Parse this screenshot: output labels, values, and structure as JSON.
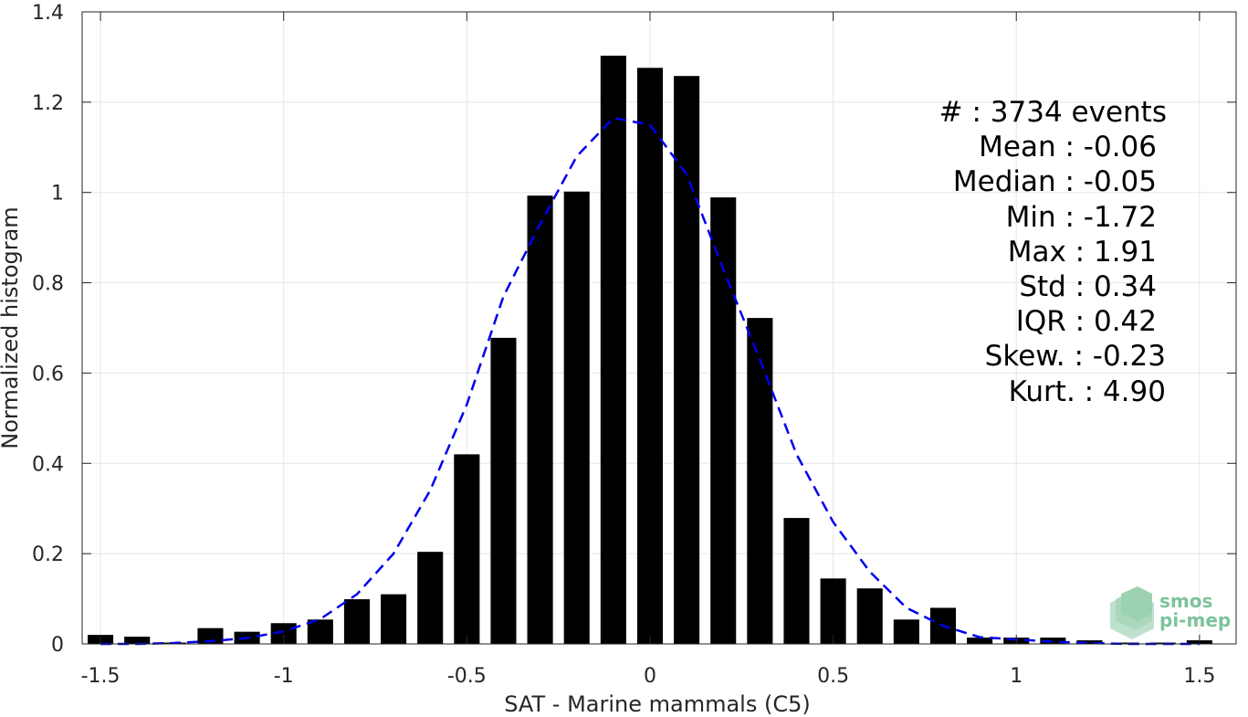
{
  "chart_data": {
    "type": "bar",
    "xlabel": "SAT - Marine mammals (C5)",
    "ylabel": "Normalized histogram",
    "xlim": [
      -1.55,
      1.6
    ],
    "ylim": [
      0,
      1.4
    ],
    "xticks": [
      "-1.5",
      "-1",
      "-0.5",
      "0",
      "0.5",
      "1",
      "1.5"
    ],
    "yticks": [
      "0",
      "0.2",
      "0.4",
      "0.6",
      "0.8",
      "1",
      "1.2",
      "1.4"
    ],
    "grid": true,
    "bin_width": 0.1,
    "bins": {
      "x": [
        -1.5,
        -1.4,
        -1.3,
        -1.2,
        -1.1,
        -1.0,
        -0.9,
        -0.8,
        -0.7,
        -0.6,
        -0.5,
        -0.4,
        -0.3,
        -0.2,
        -0.1,
        0.0,
        0.1,
        0.2,
        0.3,
        0.4,
        0.5,
        0.6,
        0.7,
        0.8,
        0.9,
        1.0,
        1.1,
        1.2,
        1.3,
        1.4,
        1.5
      ],
      "values": [
        0.02,
        0.016,
        0.003,
        0.035,
        0.027,
        0.046,
        0.054,
        0.099,
        0.11,
        0.204,
        0.42,
        0.678,
        0.993,
        1.002,
        1.303,
        1.276,
        1.258,
        0.989,
        0.722,
        0.279,
        0.145,
        0.123,
        0.054,
        0.08,
        0.014,
        0.014,
        0.014,
        0.008,
        0.003,
        0.003,
        0.008
      ],
      "color": "#000000"
    },
    "fit_curve": {
      "style": "dashed",
      "color": "#0000ee",
      "x": [
        -1.5,
        -1.4,
        -1.3,
        -1.2,
        -1.1,
        -1.0,
        -0.9,
        -0.8,
        -0.7,
        -0.6,
        -0.5,
        -0.4,
        -0.3,
        -0.2,
        -0.1,
        0.0,
        0.1,
        0.2,
        0.3,
        0.4,
        0.5,
        0.6,
        0.7,
        0.8,
        0.9,
        1.0,
        1.1,
        1.2,
        1.3,
        1.4,
        1.5
      ],
      "y": [
        0.0,
        0.0,
        0.002,
        0.006,
        0.013,
        0.028,
        0.055,
        0.11,
        0.2,
        0.34,
        0.53,
        0.77,
        0.93,
        1.08,
        1.165,
        1.15,
        1.04,
        0.83,
        0.63,
        0.42,
        0.27,
        0.16,
        0.08,
        0.04,
        0.015,
        0.01,
        0.005,
        0.002,
        0.0,
        0.0,
        0.0
      ]
    }
  },
  "stats": [
    "#  : 3734 events",
    "Mean : -0.06",
    "Median : -0.05",
    "Min : -1.72",
    "Max : 1.91",
    "Std : 0.34",
    "IQR : 0.42",
    "Skew. : -0.23",
    "Kurt. : 4.90"
  ],
  "logo": {
    "line1": "smos",
    "line2": "pi-mep",
    "color": "#7cc39a",
    "icon": "layered-tiles-icon"
  }
}
